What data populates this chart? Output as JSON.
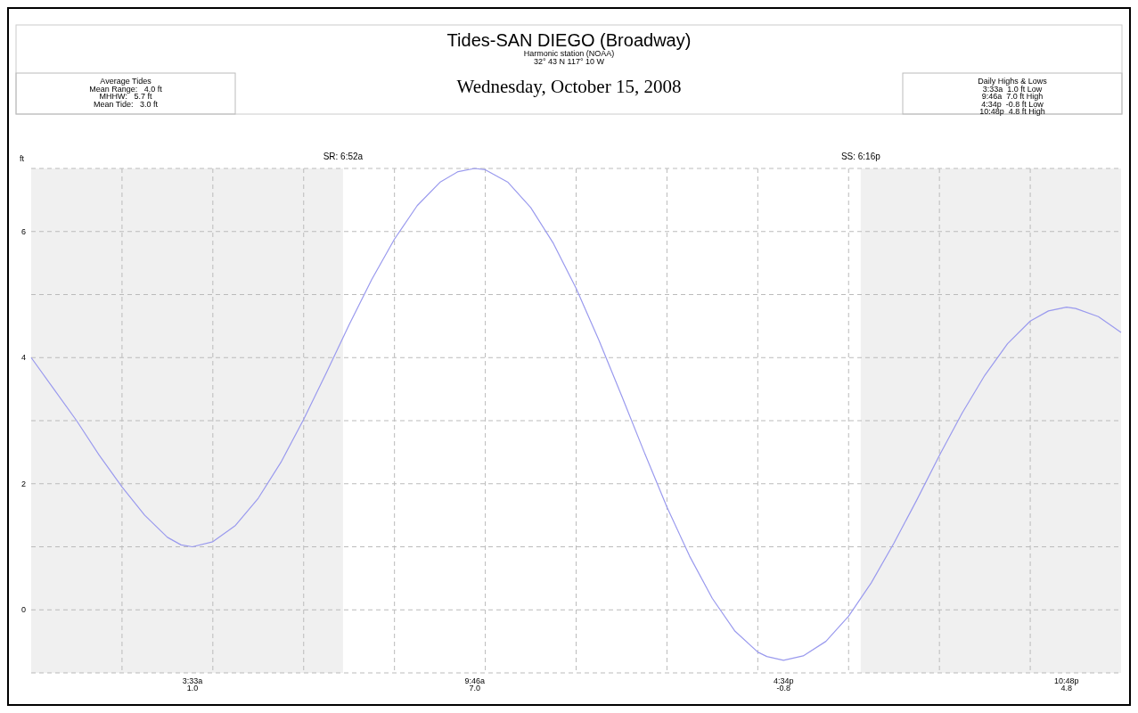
{
  "chart_data": {
    "type": "line",
    "title": "Tides-SAN DIEGO (Broadway)",
    "subtitle": "Harmonic station (NOAA)\n32° 43 N 117° 10 W",
    "ylabel": "ft",
    "x": [
      "2008-10-15T00:00",
      "2008-10-15T00:30",
      "2008-10-15T01:00",
      "2008-10-15T01:30",
      "2008-10-15T02:00",
      "2008-10-15T02:30",
      "2008-10-15T03:00",
      "2008-10-15T03:18",
      "2008-10-15T03:33",
      "2008-10-15T04:00",
      "2008-10-15T04:30",
      "2008-10-15T05:00",
      "2008-10-15T05:30",
      "2008-10-15T06:00",
      "2008-10-15T06:30",
      "2008-10-15T07:00",
      "2008-10-15T07:30",
      "2008-10-15T08:00",
      "2008-10-15T08:30",
      "2008-10-15T09:00",
      "2008-10-15T09:24",
      "2008-10-15T09:46",
      "2008-10-15T10:00",
      "2008-10-15T10:30",
      "2008-10-15T11:00",
      "2008-10-15T11:30",
      "2008-10-15T12:00",
      "2008-10-15T12:30",
      "2008-10-15T13:00",
      "2008-10-15T13:30",
      "2008-10-15T14:00",
      "2008-10-15T14:30",
      "2008-10-15T15:00",
      "2008-10-15T15:30",
      "2008-10-15T16:00",
      "2008-10-15T16:12",
      "2008-10-15T16:34",
      "2008-10-15T17:00",
      "2008-10-15T17:30",
      "2008-10-15T18:00",
      "2008-10-15T18:30",
      "2008-10-15T19:00",
      "2008-10-15T19:30",
      "2008-10-15T20:00",
      "2008-10-15T20:30",
      "2008-10-15T21:00",
      "2008-10-15T21:30",
      "2008-10-15T22:00",
      "2008-10-15T22:24",
      "2008-10-15T22:48",
      "2008-10-15T23:00",
      "2008-10-15T23:30",
      "2008-10-16T00:00"
    ],
    "series": [
      {
        "color": "#9a9aee",
        "values": [
          4.0,
          3.5,
          3.0,
          2.45,
          1.95,
          1.5,
          1.15,
          1.03,
          1.0,
          1.08,
          1.34,
          1.77,
          2.34,
          3.02,
          3.76,
          4.52,
          5.24,
          5.88,
          6.41,
          6.78,
          6.95,
          7.0,
          6.98,
          6.78,
          6.38,
          5.81,
          5.1,
          4.28,
          3.4,
          2.5,
          1.63,
          0.85,
          0.18,
          -0.34,
          -0.67,
          -0.74,
          -0.8,
          -0.73,
          -0.5,
          -0.1,
          0.43,
          1.06,
          1.74,
          2.45,
          3.12,
          3.72,
          4.22,
          4.58,
          4.74,
          4.8,
          4.78,
          4.65,
          4.4
        ]
      }
    ],
    "xlim": [
      "2008-10-15T00:00",
      "2008-10-16T00:00"
    ],
    "xticks": [
      {
        "value": "2008-10-15T02:00",
        "label": null
      },
      {
        "value": "2008-10-15T03:33",
        "label": "3:33a\n1.0"
      },
      {
        "value": "2008-10-15T04:00",
        "label": null
      },
      {
        "value": "2008-10-15T06:00",
        "label": null
      },
      {
        "value": "2008-10-15T08:00",
        "label": null
      },
      {
        "value": "2008-10-15T09:46",
        "label": "9:46a\n7.0"
      },
      {
        "value": "2008-10-15T10:00",
        "label": null
      },
      {
        "value": "2008-10-15T12:00",
        "label": null
      },
      {
        "value": "2008-10-15T14:00",
        "label": null
      },
      {
        "value": "2008-10-15T16:00",
        "label": null
      },
      {
        "value": "2008-10-15T16:34",
        "label": "4:34p\n-0.8"
      },
      {
        "value": "2008-10-15T18:00",
        "label": null
      },
      {
        "value": "2008-10-15T20:00",
        "label": null
      },
      {
        "value": "2008-10-15T22:00",
        "label": null
      },
      {
        "value": "2008-10-15T22:48",
        "label": "10:48p\n4.8"
      }
    ],
    "ylim": [
      -1,
      7
    ],
    "yticks": [
      0,
      {
        "value": 1,
        "label": null
      },
      2,
      {
        "value": 3,
        "label": null
      },
      4,
      {
        "value": 5,
        "label": null
      },
      6,
      {
        "value": 7,
        "label": null
      }
    ],
    "grid": true,
    "bands": [
      {
        "axis": "x",
        "from": "2008-10-15T00:00",
        "to": "2008-10-15T06:52",
        "label": "SR: 6:52a",
        "color": "#f0f0f0"
      },
      {
        "axis": "x",
        "from": "2008-10-15T18:16",
        "to": "2008-10-16T00:00",
        "label": "SS: 6:16p",
        "color": "#f0f0f0"
      }
    ],
    "annotations": [
      "Average Tides\nMean Range:   4.0 ft\nMHHW:   5.7 ft\nMean Tide:   3.0 ft",
      "Daily Highs & Lows\n3:33a  1.0 ft Low\n9:46a  7.0 ft High\n4:34p  -0.8 ft Low\n10:48p  4.8 ft High",
      "Wednesday, October 15, 2008"
    ]
  }
}
